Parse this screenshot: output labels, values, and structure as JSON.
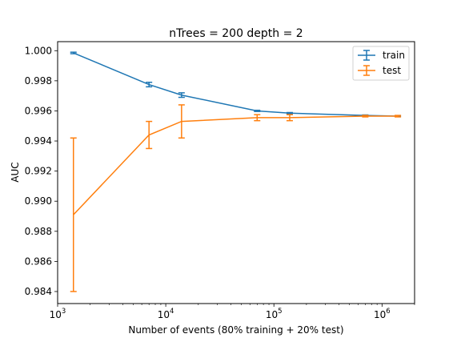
{
  "chart_data": {
    "type": "line",
    "title": "nTrees = 200 depth = 2",
    "xlabel": "Number of events (80% training + 20% test)",
    "ylabel": "AUC",
    "xscale": "log",
    "xlim": [
      1000,
      2000000
    ],
    "ylim": [
      0.9832,
      1.0006
    ],
    "xticks": [
      {
        "value": 1000,
        "base": "10",
        "exp": "3"
      },
      {
        "value": 10000,
        "base": "10",
        "exp": "4"
      },
      {
        "value": 100000,
        "base": "10",
        "exp": "5"
      },
      {
        "value": 1000000,
        "base": "10",
        "exp": "6"
      }
    ],
    "yticks": [
      0.984,
      0.986,
      0.988,
      0.99,
      0.992,
      0.994,
      0.996,
      0.998,
      1.0
    ],
    "ytick_labels": [
      "0.984",
      "0.986",
      "0.988",
      "0.990",
      "0.992",
      "0.994",
      "0.996",
      "0.998",
      "1.000"
    ],
    "grid": false,
    "legend_position": "top-right",
    "series": [
      {
        "name": "train",
        "color": "#1f77b4",
        "x": [
          1400,
          7000,
          14000,
          70000,
          140000,
          700000,
          1400000
        ],
        "y": [
          0.99985,
          0.99775,
          0.99705,
          0.996,
          0.99585,
          0.9957,
          0.99565
        ],
        "err": [
          5e-05,
          0.00015,
          0.00015,
          4e-05,
          4e-05,
          3e-05,
          3e-05
        ]
      },
      {
        "name": "test",
        "color": "#ff7f0e",
        "x": [
          1400,
          7000,
          14000,
          70000,
          140000,
          700000,
          1400000
        ],
        "y": [
          0.9891,
          0.9944,
          0.9953,
          0.99555,
          0.99555,
          0.99565,
          0.99565
        ],
        "err": [
          0.0051,
          0.0009,
          0.0011,
          0.0002,
          0.0002,
          5e-05,
          5e-05
        ]
      }
    ]
  }
}
